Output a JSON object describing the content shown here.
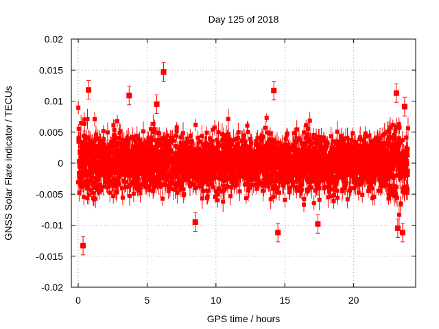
{
  "chart_data": {
    "type": "scatter",
    "title": "Day 125 of 2018",
    "xlabel": "GPS time / hours",
    "ylabel": "GNSS Solar Flare indicator / TECUs",
    "xlim": [
      -0.5,
      24.5
    ],
    "ylim": [
      -0.02,
      0.02
    ],
    "x_ticks": [
      0,
      5,
      10,
      15,
      20
    ],
    "x_tick_labels": [
      "0",
      "5",
      "10",
      "15",
      "20"
    ],
    "y_ticks": [
      -0.02,
      -0.015,
      -0.01,
      -0.005,
      0,
      0.005,
      0.01,
      0.015,
      0.02
    ],
    "y_tick_labels": [
      "-0.02",
      "-0.015",
      "-0.01",
      "-0.005",
      "0",
      "0.005",
      "0.01",
      "0.015",
      "0.02"
    ],
    "grid": true,
    "series_color": "#ff0000",
    "series": [
      {
        "name": "indicator",
        "style": "points-with-error-bars",
        "x_range": [
          0,
          23.95
        ],
        "sample_interval_hours": 0.0083,
        "typical_spread": 0.0045,
        "typical_error": 0.0012,
        "outliers": [
          {
            "x": 0.35,
            "y": -0.0133
          },
          {
            "x": 0.75,
            "y": 0.0118
          },
          {
            "x": 3.7,
            "y": 0.0109
          },
          {
            "x": 5.7,
            "y": 0.0095
          },
          {
            "x": 6.2,
            "y": 0.0147
          },
          {
            "x": 8.5,
            "y": -0.0095
          },
          {
            "x": 14.2,
            "y": 0.0117
          },
          {
            "x": 14.5,
            "y": -0.0112
          },
          {
            "x": 17.4,
            "y": -0.0098
          },
          {
            "x": 23.1,
            "y": 0.0113
          },
          {
            "x": 23.2,
            "y": -0.0105
          },
          {
            "x": 23.55,
            "y": -0.0112
          },
          {
            "x": 23.7,
            "y": 0.0091
          }
        ]
      }
    ]
  }
}
